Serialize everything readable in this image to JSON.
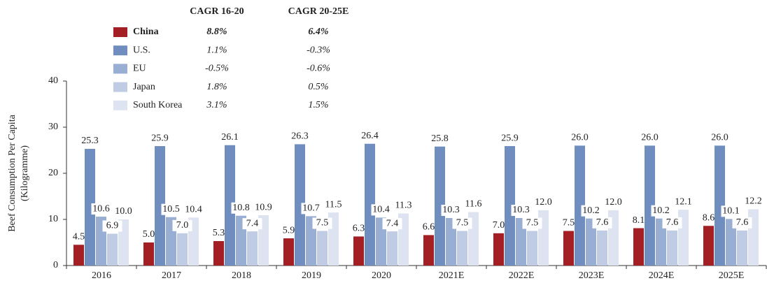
{
  "chart_data": {
    "type": "bar",
    "ylabel": [
      "Beef Consumption Per Capita",
      "(Kilogramme)"
    ],
    "legend_columns": [
      "CAGR 16-20",
      "CAGR 20-25E"
    ],
    "categories": [
      "2016",
      "2017",
      "2018",
      "2019",
      "2020",
      "2021E",
      "2022E",
      "2023E",
      "2024E",
      "2025E"
    ],
    "series": [
      {
        "name": "China",
        "color": "#a31f24",
        "cagr": [
          "8.8%",
          "6.4%"
        ],
        "values": [
          4.5,
          5.0,
          5.3,
          5.9,
          6.3,
          6.6,
          7.0,
          7.5,
          8.1,
          8.6
        ],
        "value_labels": [
          "4.5",
          "5.0",
          "5.3",
          "5.9",
          "6.3",
          "6.6",
          "7.0",
          "7.5",
          "8.1",
          "8.6"
        ]
      },
      {
        "name": "U.S.",
        "color": "#6f8ebf",
        "cagr": [
          "1.1%",
          "-0.3%"
        ],
        "values": [
          25.3,
          25.9,
          26.1,
          26.3,
          26.4,
          25.8,
          25.9,
          26.0,
          26.0,
          26.0
        ],
        "value_labels": [
          "25.3",
          "25.9",
          "26.1",
          "26.3",
          "26.4",
          "25.8",
          "25.9",
          "26.0",
          "26.0",
          "26.0"
        ]
      },
      {
        "name": "EU",
        "color": "#98aed3",
        "cagr": [
          "-0.5%",
          "-0.6%"
        ],
        "values": [
          10.6,
          10.5,
          10.8,
          10.7,
          10.4,
          10.3,
          10.3,
          10.2,
          10.2,
          10.1
        ],
        "value_labels": [
          "10.6",
          "10.5",
          "10.8",
          "10.7",
          "10.4",
          "10.3",
          "10.3",
          "10.2",
          "10.2",
          "10.1"
        ]
      },
      {
        "name": "Japan",
        "color": "#bfcce4",
        "cagr": [
          "1.8%",
          "0.5%"
        ],
        "values": [
          6.9,
          7.0,
          7.4,
          7.5,
          7.4,
          7.5,
          7.5,
          7.6,
          7.6,
          7.6
        ],
        "value_labels": [
          "6.9",
          "7.0",
          "7.4",
          "7.5",
          "7.4",
          "7.5",
          "7.5",
          "7.6",
          "7.6",
          "7.6"
        ]
      },
      {
        "name": "South Korea",
        "color": "#dde3f0",
        "cagr": [
          "3.1%",
          "1.5%"
        ],
        "values": [
          10.0,
          10.4,
          10.9,
          11.5,
          11.3,
          11.6,
          12.0,
          12.0,
          12.1,
          12.2
        ],
        "value_labels": [
          "10.0",
          "10.4",
          "10.9",
          "11.5",
          "11.3",
          "11.6",
          "12.0",
          "12.0",
          "12.1",
          "12.2"
        ]
      }
    ],
    "ylim": [
      0,
      40
    ],
    "yticks": [
      0,
      10,
      20,
      30,
      40
    ]
  }
}
